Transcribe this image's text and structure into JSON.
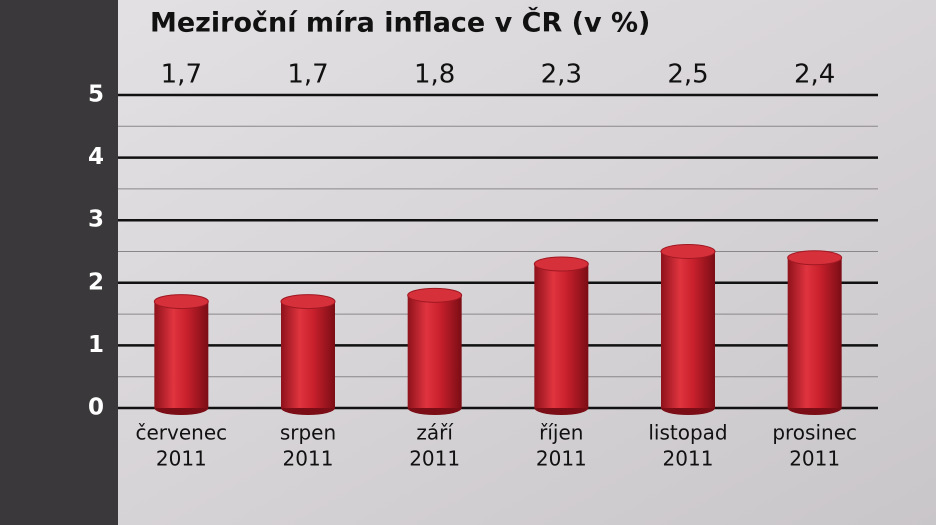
{
  "chart_data": {
    "type": "bar",
    "title": "Meziroční míra inflace v ČR (v %)",
    "categories": [
      [
        "červenec",
        "2011"
      ],
      [
        "srpen",
        "2011"
      ],
      [
        "září",
        "2011"
      ],
      [
        "říjen",
        "2011"
      ],
      [
        "listopad",
        "2011"
      ],
      [
        "prosinec",
        "2011"
      ]
    ],
    "values": [
      1.7,
      1.7,
      1.8,
      2.3,
      2.5,
      2.4
    ],
    "value_labels": [
      "1,7",
      "1,7",
      "1,8",
      "2,3",
      "2,5",
      "2,4"
    ],
    "color": "#c8202c",
    "ylim": [
      0,
      5
    ],
    "yticks": [
      0,
      1,
      2,
      3,
      4,
      5
    ],
    "minor_yticks": [
      0.5,
      1.5,
      2.5,
      3.5,
      4.5
    ],
    "grid": true
  }
}
